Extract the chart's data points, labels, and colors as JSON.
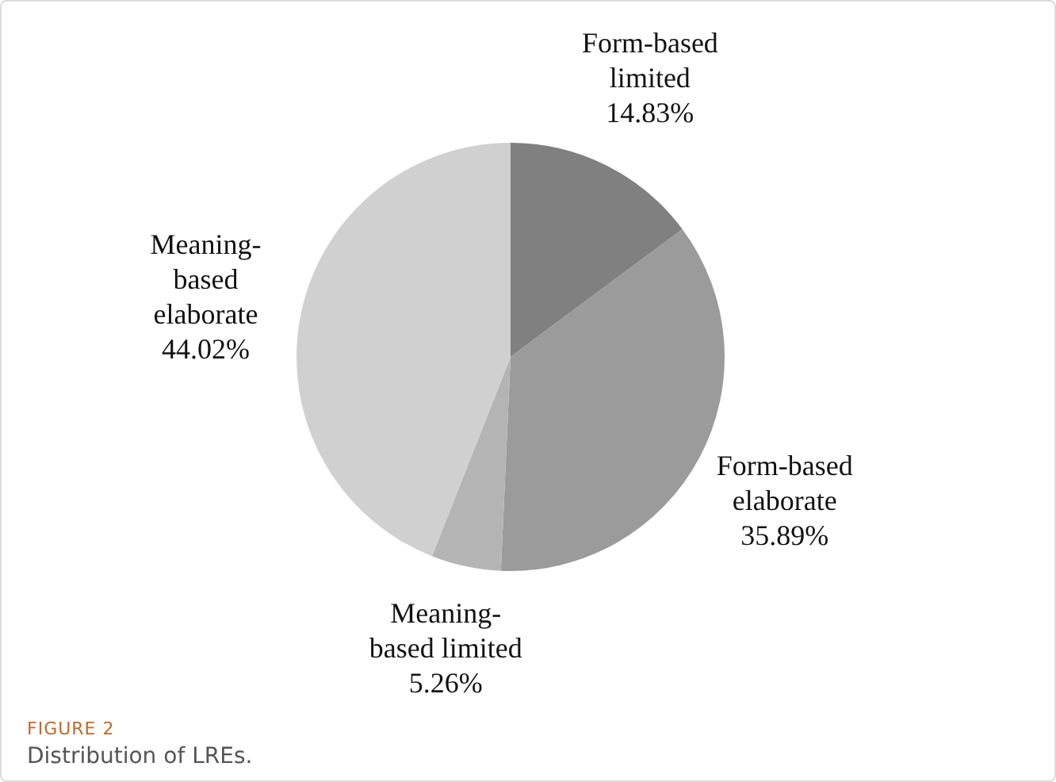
{
  "chart_data": {
    "type": "pie",
    "title": "FIGURE 2",
    "subtitle": "Distribution of LREs.",
    "categories": [
      "Form-based limited",
      "Form-based elaborate",
      "Meaning-based limited",
      "Meaning-based elaborate"
    ],
    "values": [
      14.83,
      35.89,
      5.26,
      44.02
    ],
    "colors": [
      "#808080",
      "#9b9b9b",
      "#b4b4b4",
      "#d0d0d0"
    ],
    "value_labels": [
      "14.83%",
      "35.89%",
      "5.26%",
      "44.02%"
    ],
    "legend": false
  }
}
